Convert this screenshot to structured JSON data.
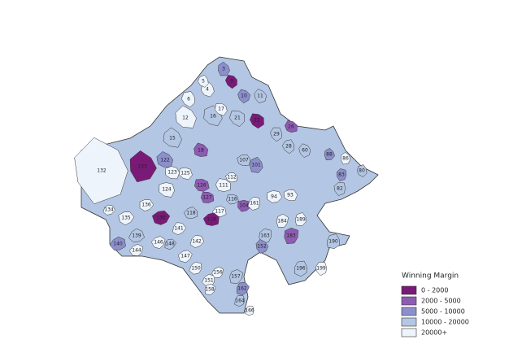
{
  "legend": {
    "title": "Winning Margin",
    "items": [
      {
        "label": "0 - 2000",
        "color": "#7a1a78"
      },
      {
        "label": "2000 - 5000",
        "color": "#8e5bb3"
      },
      {
        "label": "5000 - 10000",
        "color": "#8c8fcb"
      },
      {
        "label": "10000 - 20000",
        "color": "#b3c6e3"
      },
      {
        "label": "20000+",
        "color": "#eef4fb"
      }
    ]
  },
  "regions": [
    {
      "label": "132",
      "class": 4
    },
    {
      "label": "133",
      "class": 0
    },
    {
      "label": "3",
      "class": 2
    },
    {
      "label": "4",
      "class": 4
    },
    {
      "label": "5",
      "class": 4
    },
    {
      "label": "6",
      "class": 4
    },
    {
      "label": "9",
      "class": 0
    },
    {
      "label": "10",
      "class": 2
    },
    {
      "label": "11",
      "class": 3
    },
    {
      "label": "12",
      "class": 4
    },
    {
      "label": "15",
      "class": 3
    },
    {
      "label": "16",
      "class": 3
    },
    {
      "label": "17",
      "class": 4
    },
    {
      "label": "21",
      "class": 3
    },
    {
      "label": "22",
      "class": 0
    },
    {
      "label": "26",
      "class": 1
    },
    {
      "label": "18",
      "class": 1
    },
    {
      "label": "122",
      "class": 2
    },
    {
      "label": "123",
      "class": 4
    },
    {
      "label": "124",
      "class": 4
    },
    {
      "label": "125",
      "class": 4
    },
    {
      "label": "126",
      "class": 1
    },
    {
      "label": "127",
      "class": 1
    },
    {
      "label": "111",
      "class": 4
    },
    {
      "label": "112",
      "class": 4
    },
    {
      "label": "107",
      "class": 3
    },
    {
      "label": "93",
      "class": 4
    },
    {
      "label": "94",
      "class": 4
    },
    {
      "label": "104",
      "class": 1
    },
    {
      "label": "116",
      "class": 3
    },
    {
      "label": "117",
      "class": 4
    },
    {
      "label": "118",
      "class": 3
    },
    {
      "label": "119",
      "class": 0
    },
    {
      "label": "130",
      "class": 0
    },
    {
      "label": "135",
      "class": 4
    },
    {
      "label": "136",
      "class": 4
    },
    {
      "label": "134",
      "class": 4
    },
    {
      "label": "139",
      "class": 3
    },
    {
      "label": "140",
      "class": 2
    },
    {
      "label": "144",
      "class": 4
    },
    {
      "label": "146",
      "class": 4
    },
    {
      "label": "147",
      "class": 4
    },
    {
      "label": "148",
      "class": 3
    },
    {
      "label": "141",
      "class": 4
    },
    {
      "label": "142",
      "class": 4
    },
    {
      "label": "150",
      "class": 4
    },
    {
      "label": "151",
      "class": 4
    },
    {
      "label": "156",
      "class": 4
    },
    {
      "label": "157",
      "class": 3
    },
    {
      "label": "158",
      "class": 4
    },
    {
      "label": "162",
      "class": 2
    },
    {
      "label": "164",
      "class": 3
    },
    {
      "label": "166",
      "class": 4
    },
    {
      "label": "161",
      "class": 4
    },
    {
      "label": "163",
      "class": 3
    },
    {
      "label": "183",
      "class": 1
    },
    {
      "label": "184",
      "class": 4
    },
    {
      "label": "189",
      "class": 4
    },
    {
      "label": "190",
      "class": 3
    },
    {
      "label": "196",
      "class": 3
    },
    {
      "label": "199",
      "class": 4
    },
    {
      "label": "82",
      "class": 3
    },
    {
      "label": "83",
      "class": 2
    },
    {
      "label": "86",
      "class": 4
    },
    {
      "label": "88",
      "class": 2
    },
    {
      "label": "101",
      "class": 2
    },
    {
      "label": "80",
      "class": 3
    },
    {
      "label": "28",
      "class": 3
    },
    {
      "label": "29",
      "class": 3
    },
    {
      "label": "60",
      "class": 3
    },
    {
      "label": "152",
      "class": 2
    }
  ]
}
